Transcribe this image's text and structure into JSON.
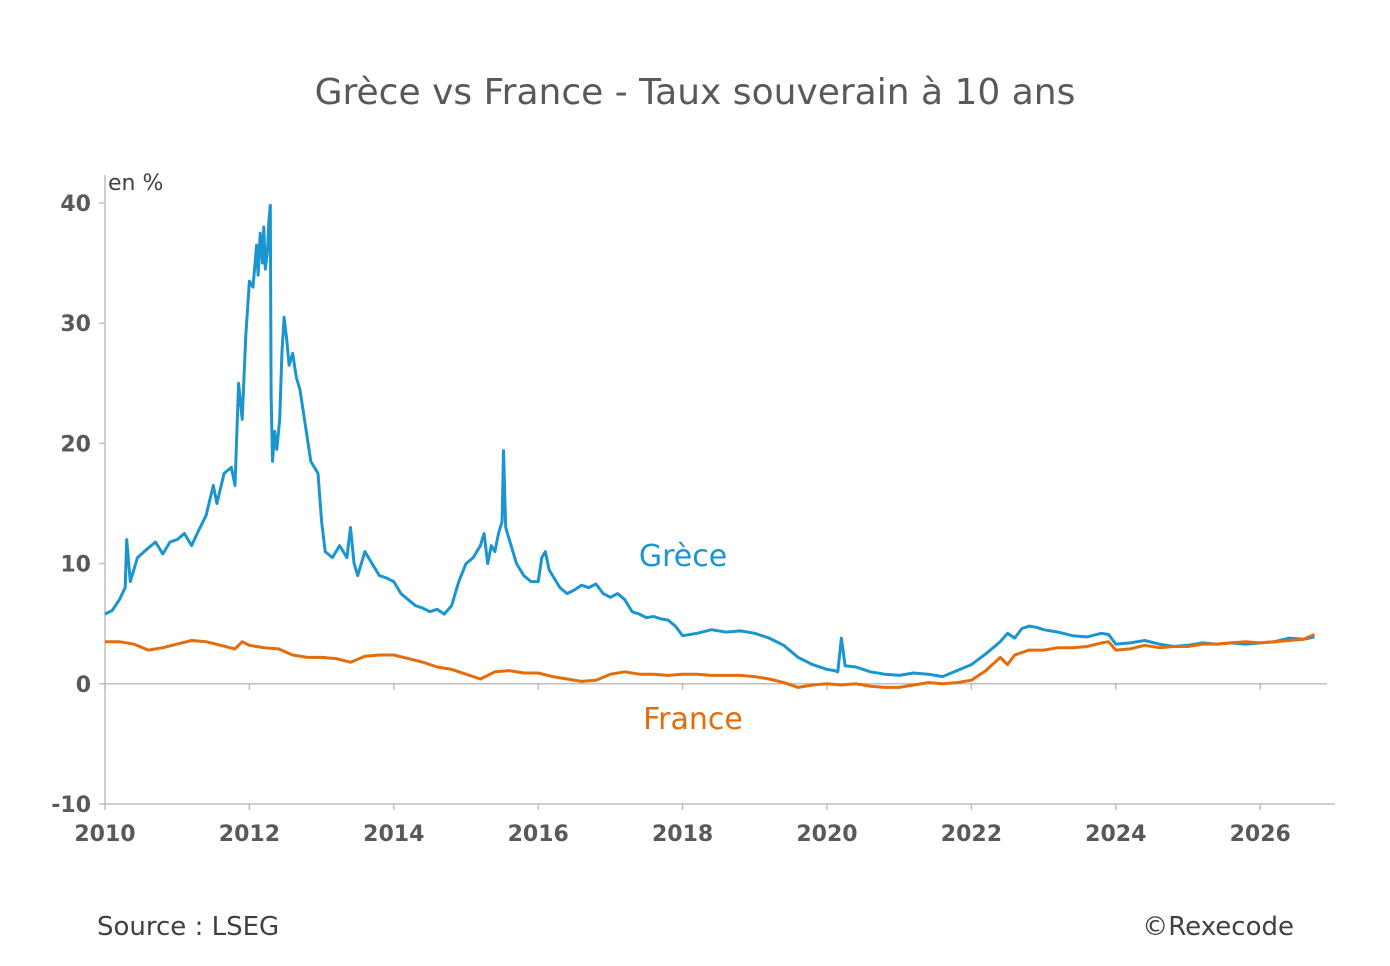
{
  "source": "Source : LSEG",
  "copyright": "©Rexecode",
  "colors": {
    "greece": "#1b95cf",
    "france": "#e46c0a",
    "axis": "#bfbfbf",
    "text": "#595959"
  },
  "chart_data": {
    "type": "line",
    "title": "Grèce vs France - Taux souverain à 10 ans",
    "ylabel": "en %",
    "xlabel": "",
    "xlim": [
      2010,
      2026.9
    ],
    "ylim": [
      -10,
      40
    ],
    "x_ticks": [
      "2010",
      "2012",
      "2014",
      "2016",
      "2018",
      "2020",
      "2022",
      "2024",
      "2026"
    ],
    "y_ticks": [
      "40",
      "30",
      "20",
      "10",
      "0",
      "-10"
    ],
    "grid": false,
    "legend": "inline labels",
    "series": [
      {
        "name": "Grèce",
        "color": "#1b95cf",
        "points": [
          [
            2010.0,
            5.8
          ],
          [
            2010.1,
            6.1
          ],
          [
            2010.2,
            7.0
          ],
          [
            2010.28,
            8.0
          ],
          [
            2010.3,
            12.0
          ],
          [
            2010.35,
            8.5
          ],
          [
            2010.45,
            10.5
          ],
          [
            2010.6,
            11.3
          ],
          [
            2010.7,
            11.8
          ],
          [
            2010.8,
            10.8
          ],
          [
            2010.9,
            11.8
          ],
          [
            2011.0,
            12.0
          ],
          [
            2011.1,
            12.5
          ],
          [
            2011.2,
            11.5
          ],
          [
            2011.3,
            12.8
          ],
          [
            2011.4,
            14.0
          ],
          [
            2011.5,
            16.5
          ],
          [
            2011.55,
            15.0
          ],
          [
            2011.65,
            17.5
          ],
          [
            2011.75,
            18.0
          ],
          [
            2011.8,
            16.5
          ],
          [
            2011.85,
            25.0
          ],
          [
            2011.9,
            22.0
          ],
          [
            2011.95,
            29.0
          ],
          [
            2012.0,
            33.5
          ],
          [
            2012.05,
            33.0
          ],
          [
            2012.1,
            36.5
          ],
          [
            2012.12,
            34.0
          ],
          [
            2012.15,
            37.5
          ],
          [
            2012.18,
            35.0
          ],
          [
            2012.2,
            38.0
          ],
          [
            2012.22,
            34.5
          ],
          [
            2012.25,
            36.0
          ],
          [
            2012.27,
            38.5
          ],
          [
            2012.29,
            39.8
          ],
          [
            2012.3,
            24.0
          ],
          [
            2012.32,
            18.5
          ],
          [
            2012.35,
            21.0
          ],
          [
            2012.38,
            19.5
          ],
          [
            2012.42,
            22.0
          ],
          [
            2012.45,
            27.5
          ],
          [
            2012.48,
            30.5
          ],
          [
            2012.52,
            28.5
          ],
          [
            2012.55,
            26.5
          ],
          [
            2012.6,
            27.5
          ],
          [
            2012.65,
            25.5
          ],
          [
            2012.7,
            24.5
          ],
          [
            2012.8,
            20.5
          ],
          [
            2012.85,
            18.5
          ],
          [
            2012.95,
            17.5
          ],
          [
            2013.0,
            13.5
          ],
          [
            2013.05,
            11.0
          ],
          [
            2013.15,
            10.5
          ],
          [
            2013.25,
            11.5
          ],
          [
            2013.35,
            10.5
          ],
          [
            2013.4,
            13.0
          ],
          [
            2013.45,
            10.0
          ],
          [
            2013.5,
            9.0
          ],
          [
            2013.6,
            11.0
          ],
          [
            2013.7,
            10.0
          ],
          [
            2013.8,
            9.0
          ],
          [
            2013.9,
            8.8
          ],
          [
            2014.0,
            8.5
          ],
          [
            2014.1,
            7.5
          ],
          [
            2014.2,
            7.0
          ],
          [
            2014.3,
            6.5
          ],
          [
            2014.4,
            6.3
          ],
          [
            2014.5,
            6.0
          ],
          [
            2014.6,
            6.2
          ],
          [
            2014.7,
            5.8
          ],
          [
            2014.8,
            6.5
          ],
          [
            2014.85,
            7.5
          ],
          [
            2014.9,
            8.5
          ],
          [
            2015.0,
            10.0
          ],
          [
            2015.1,
            10.5
          ],
          [
            2015.2,
            11.5
          ],
          [
            2015.25,
            12.5
          ],
          [
            2015.3,
            10.0
          ],
          [
            2015.35,
            11.5
          ],
          [
            2015.4,
            11.0
          ],
          [
            2015.45,
            12.5
          ],
          [
            2015.5,
            13.5
          ],
          [
            2015.52,
            19.4
          ],
          [
            2015.55,
            13.0
          ],
          [
            2015.6,
            12.0
          ],
          [
            2015.7,
            10.0
          ],
          [
            2015.8,
            9.0
          ],
          [
            2015.9,
            8.5
          ],
          [
            2016.0,
            8.5
          ],
          [
            2016.05,
            10.5
          ],
          [
            2016.1,
            11.0
          ],
          [
            2016.15,
            9.5
          ],
          [
            2016.2,
            9.0
          ],
          [
            2016.3,
            8.0
          ],
          [
            2016.4,
            7.5
          ],
          [
            2016.5,
            7.8
          ],
          [
            2016.6,
            8.2
          ],
          [
            2016.7,
            8.0
          ],
          [
            2016.8,
            8.3
          ],
          [
            2016.9,
            7.5
          ],
          [
            2017.0,
            7.2
          ],
          [
            2017.1,
            7.5
          ],
          [
            2017.2,
            7.0
          ],
          [
            2017.3,
            6.0
          ],
          [
            2017.4,
            5.8
          ],
          [
            2017.5,
            5.5
          ],
          [
            2017.6,
            5.6
          ],
          [
            2017.7,
            5.4
          ],
          [
            2017.8,
            5.3
          ],
          [
            2017.9,
            4.8
          ],
          [
            2018.0,
            4.0
          ],
          [
            2018.2,
            4.2
          ],
          [
            2018.4,
            4.5
          ],
          [
            2018.6,
            4.3
          ],
          [
            2018.8,
            4.4
          ],
          [
            2019.0,
            4.2
          ],
          [
            2019.2,
            3.8
          ],
          [
            2019.4,
            3.2
          ],
          [
            2019.6,
            2.2
          ],
          [
            2019.8,
            1.6
          ],
          [
            2020.0,
            1.2
          ],
          [
            2020.1,
            1.1
          ],
          [
            2020.15,
            1.0
          ],
          [
            2020.2,
            3.8
          ],
          [
            2020.25,
            1.5
          ],
          [
            2020.4,
            1.4
          ],
          [
            2020.6,
            1.0
          ],
          [
            2020.8,
            0.8
          ],
          [
            2021.0,
            0.7
          ],
          [
            2021.2,
            0.9
          ],
          [
            2021.4,
            0.8
          ],
          [
            2021.6,
            0.6
          ],
          [
            2021.8,
            1.1
          ],
          [
            2022.0,
            1.6
          ],
          [
            2022.2,
            2.5
          ],
          [
            2022.4,
            3.5
          ],
          [
            2022.5,
            4.2
          ],
          [
            2022.6,
            3.8
          ],
          [
            2022.7,
            4.6
          ],
          [
            2022.8,
            4.8
          ],
          [
            2022.9,
            4.7
          ],
          [
            2023.0,
            4.5
          ],
          [
            2023.2,
            4.3
          ],
          [
            2023.4,
            4.0
          ],
          [
            2023.6,
            3.9
          ],
          [
            2023.8,
            4.2
          ],
          [
            2023.9,
            4.1
          ],
          [
            2024.0,
            3.3
          ],
          [
            2024.2,
            3.4
          ],
          [
            2024.4,
            3.6
          ],
          [
            2024.6,
            3.3
          ],
          [
            2024.8,
            3.1
          ],
          [
            2025.0,
            3.2
          ],
          [
            2025.2,
            3.4
          ],
          [
            2025.4,
            3.3
          ],
          [
            2025.6,
            3.4
          ],
          [
            2025.8,
            3.3
          ],
          [
            2026.0,
            3.4
          ],
          [
            2026.2,
            3.5
          ],
          [
            2026.4,
            3.8
          ],
          [
            2026.6,
            3.7
          ],
          [
            2026.75,
            3.9
          ]
        ]
      },
      {
        "name": "France",
        "color": "#e46c0a",
        "points": [
          [
            2010.0,
            3.5
          ],
          [
            2010.2,
            3.5
          ],
          [
            2010.4,
            3.3
          ],
          [
            2010.6,
            2.8
          ],
          [
            2010.8,
            3.0
          ],
          [
            2011.0,
            3.3
          ],
          [
            2011.2,
            3.6
          ],
          [
            2011.4,
            3.5
          ],
          [
            2011.6,
            3.2
          ],
          [
            2011.8,
            2.9
          ],
          [
            2011.9,
            3.5
          ],
          [
            2012.0,
            3.2
          ],
          [
            2012.2,
            3.0
          ],
          [
            2012.4,
            2.9
          ],
          [
            2012.6,
            2.4
          ],
          [
            2012.8,
            2.2
          ],
          [
            2013.0,
            2.2
          ],
          [
            2013.2,
            2.1
          ],
          [
            2013.4,
            1.8
          ],
          [
            2013.6,
            2.3
          ],
          [
            2013.8,
            2.4
          ],
          [
            2014.0,
            2.4
          ],
          [
            2014.2,
            2.1
          ],
          [
            2014.4,
            1.8
          ],
          [
            2014.6,
            1.4
          ],
          [
            2014.8,
            1.2
          ],
          [
            2015.0,
            0.8
          ],
          [
            2015.2,
            0.4
          ],
          [
            2015.4,
            1.0
          ],
          [
            2015.6,
            1.1
          ],
          [
            2015.8,
            0.9
          ],
          [
            2016.0,
            0.9
          ],
          [
            2016.2,
            0.6
          ],
          [
            2016.4,
            0.4
          ],
          [
            2016.6,
            0.2
          ],
          [
            2016.8,
            0.3
          ],
          [
            2017.0,
            0.8
          ],
          [
            2017.2,
            1.0
          ],
          [
            2017.4,
            0.8
          ],
          [
            2017.6,
            0.8
          ],
          [
            2017.8,
            0.7
          ],
          [
            2018.0,
            0.8
          ],
          [
            2018.2,
            0.8
          ],
          [
            2018.4,
            0.7
          ],
          [
            2018.6,
            0.7
          ],
          [
            2018.8,
            0.7
          ],
          [
            2019.0,
            0.6
          ],
          [
            2019.2,
            0.4
          ],
          [
            2019.4,
            0.1
          ],
          [
            2019.6,
            -0.3
          ],
          [
            2019.8,
            -0.1
          ],
          [
            2020.0,
            0.0
          ],
          [
            2020.2,
            -0.1
          ],
          [
            2020.4,
            0.0
          ],
          [
            2020.6,
            -0.2
          ],
          [
            2020.8,
            -0.3
          ],
          [
            2021.0,
            -0.3
          ],
          [
            2021.2,
            -0.1
          ],
          [
            2021.4,
            0.1
          ],
          [
            2021.6,
            0.0
          ],
          [
            2021.8,
            0.1
          ],
          [
            2022.0,
            0.3
          ],
          [
            2022.2,
            1.1
          ],
          [
            2022.4,
            2.2
          ],
          [
            2022.5,
            1.6
          ],
          [
            2022.6,
            2.4
          ],
          [
            2022.8,
            2.8
          ],
          [
            2023.0,
            2.8
          ],
          [
            2023.2,
            3.0
          ],
          [
            2023.4,
            3.0
          ],
          [
            2023.6,
            3.1
          ],
          [
            2023.8,
            3.4
          ],
          [
            2023.9,
            3.5
          ],
          [
            2024.0,
            2.8
          ],
          [
            2024.2,
            2.9
          ],
          [
            2024.4,
            3.2
          ],
          [
            2024.6,
            3.0
          ],
          [
            2024.8,
            3.1
          ],
          [
            2025.0,
            3.1
          ],
          [
            2025.2,
            3.3
          ],
          [
            2025.4,
            3.3
          ],
          [
            2025.6,
            3.4
          ],
          [
            2025.8,
            3.5
          ],
          [
            2026.0,
            3.4
          ],
          [
            2026.2,
            3.5
          ],
          [
            2026.4,
            3.6
          ],
          [
            2026.6,
            3.7
          ],
          [
            2026.75,
            4.1
          ]
        ]
      }
    ]
  }
}
